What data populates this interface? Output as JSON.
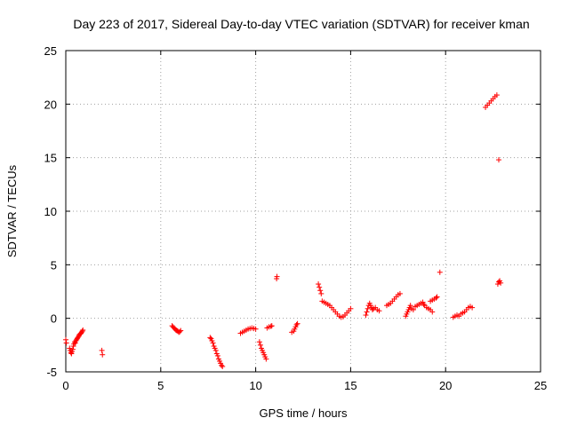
{
  "chart_data": {
    "type": "scatter",
    "title": "Day 223 of 2017, Sidereal Day-to-day VTEC variation (SDTVAR) for receiver kman",
    "xlabel": "GPS time / hours",
    "ylabel": "SDTVAR / TECUs",
    "xlim": [
      0,
      25
    ],
    "ylim": [
      -5,
      25
    ],
    "xticks": [
      "0",
      "5",
      "10",
      "15",
      "20",
      "25"
    ],
    "yticks": [
      "-5",
      "0",
      "5",
      "10",
      "15",
      "20",
      "25"
    ],
    "grid": true,
    "marker": "plus",
    "marker_color": "#ff0000",
    "series": [
      {
        "name": "SDTVAR",
        "points": [
          [
            0.0,
            -2.0
          ],
          [
            0.03,
            -2.3
          ],
          [
            0.2,
            -2.8
          ],
          [
            0.23,
            -3.0
          ],
          [
            0.27,
            -3.2
          ],
          [
            0.3,
            -3.3
          ],
          [
            0.33,
            -3.1
          ],
          [
            0.37,
            -2.9
          ],
          [
            0.4,
            -2.6
          ],
          [
            0.43,
            -2.4
          ],
          [
            0.47,
            -2.2
          ],
          [
            0.5,
            -2.3
          ],
          [
            0.53,
            -2.1
          ],
          [
            0.57,
            -2.0
          ],
          [
            0.6,
            -1.9
          ],
          [
            0.63,
            -1.8
          ],
          [
            0.67,
            -1.7
          ],
          [
            0.7,
            -1.6
          ],
          [
            0.73,
            -1.5
          ],
          [
            0.77,
            -1.45
          ],
          [
            0.8,
            -1.4
          ],
          [
            0.83,
            -1.3
          ],
          [
            0.87,
            -1.2
          ],
          [
            0.9,
            -1.1
          ],
          [
            1.9,
            -3.0
          ],
          [
            1.93,
            -3.4
          ],
          [
            5.6,
            -0.7
          ],
          [
            5.65,
            -0.8
          ],
          [
            5.7,
            -0.9
          ],
          [
            5.75,
            -1.0
          ],
          [
            5.8,
            -1.1
          ],
          [
            5.85,
            -1.15
          ],
          [
            5.9,
            -1.2
          ],
          [
            5.95,
            -1.3
          ],
          [
            6.0,
            -1.25
          ],
          [
            6.05,
            -1.15
          ],
          [
            7.6,
            -1.8
          ],
          [
            7.65,
            -1.9
          ],
          [
            7.7,
            -2.1
          ],
          [
            7.75,
            -2.3
          ],
          [
            7.8,
            -2.6
          ],
          [
            7.85,
            -2.8
          ],
          [
            7.9,
            -3.0
          ],
          [
            7.95,
            -3.3
          ],
          [
            8.0,
            -3.5
          ],
          [
            8.05,
            -3.8
          ],
          [
            8.1,
            -4.0
          ],
          [
            8.15,
            -4.2
          ],
          [
            8.2,
            -4.4
          ],
          [
            8.25,
            -4.5
          ],
          [
            9.2,
            -1.4
          ],
          [
            9.3,
            -1.3
          ],
          [
            9.4,
            -1.2
          ],
          [
            9.5,
            -1.1
          ],
          [
            9.6,
            -1.0
          ],
          [
            9.7,
            -0.95
          ],
          [
            9.8,
            -0.9
          ],
          [
            9.9,
            -0.95
          ],
          [
            10.0,
            -1.0
          ],
          [
            10.2,
            -2.2
          ],
          [
            10.25,
            -2.5
          ],
          [
            10.3,
            -2.8
          ],
          [
            10.35,
            -3.0
          ],
          [
            10.4,
            -3.2
          ],
          [
            10.45,
            -3.4
          ],
          [
            10.5,
            -3.6
          ],
          [
            10.55,
            -3.8
          ],
          [
            10.6,
            -0.9
          ],
          [
            10.7,
            -0.8
          ],
          [
            10.8,
            -0.75
          ],
          [
            10.85,
            -0.7
          ],
          [
            11.1,
            3.7
          ],
          [
            11.12,
            3.9
          ],
          [
            11.9,
            -1.3
          ],
          [
            12.0,
            -1.2
          ],
          [
            12.05,
            -1.0
          ],
          [
            12.1,
            -0.8
          ],
          [
            12.15,
            -0.6
          ],
          [
            12.2,
            -0.5
          ],
          [
            13.3,
            3.2
          ],
          [
            13.35,
            2.9
          ],
          [
            13.4,
            2.6
          ],
          [
            13.45,
            2.3
          ],
          [
            13.5,
            1.6
          ],
          [
            13.6,
            1.5
          ],
          [
            13.7,
            1.4
          ],
          [
            13.8,
            1.3
          ],
          [
            13.9,
            1.2
          ],
          [
            14.0,
            1.0
          ],
          [
            14.1,
            0.8
          ],
          [
            14.2,
            0.6
          ],
          [
            14.3,
            0.4
          ],
          [
            14.4,
            0.2
          ],
          [
            14.5,
            0.1
          ],
          [
            14.6,
            0.15
          ],
          [
            14.7,
            0.3
          ],
          [
            14.8,
            0.5
          ],
          [
            14.9,
            0.7
          ],
          [
            15.0,
            0.9
          ],
          [
            15.8,
            0.3
          ],
          [
            15.85,
            0.6
          ],
          [
            15.9,
            0.9
          ],
          [
            15.95,
            1.2
          ],
          [
            16.0,
            1.4
          ],
          [
            16.05,
            1.2
          ],
          [
            16.1,
            1.0
          ],
          [
            16.15,
            0.8
          ],
          [
            16.2,
            0.9
          ],
          [
            16.3,
            1.0
          ],
          [
            16.4,
            0.8
          ],
          [
            16.5,
            0.7
          ],
          [
            16.9,
            1.2
          ],
          [
            17.0,
            1.3
          ],
          [
            17.1,
            1.4
          ],
          [
            17.2,
            1.6
          ],
          [
            17.3,
            1.8
          ],
          [
            17.4,
            2.0
          ],
          [
            17.5,
            2.2
          ],
          [
            17.6,
            2.3
          ],
          [
            17.9,
            0.2
          ],
          [
            17.95,
            0.4
          ],
          [
            18.0,
            0.6
          ],
          [
            18.05,
            0.8
          ],
          [
            18.1,
            1.0
          ],
          [
            18.15,
            1.2
          ],
          [
            18.2,
            0.9
          ],
          [
            18.3,
            0.8
          ],
          [
            18.4,
            1.1
          ],
          [
            18.5,
            1.2
          ],
          [
            18.6,
            1.3
          ],
          [
            18.7,
            1.4
          ],
          [
            18.8,
            1.5
          ],
          [
            18.85,
            1.3
          ],
          [
            18.9,
            1.2
          ],
          [
            19.0,
            1.0
          ],
          [
            19.1,
            0.9
          ],
          [
            19.2,
            0.8
          ],
          [
            19.3,
            0.6
          ],
          [
            19.2,
            1.6
          ],
          [
            19.3,
            1.7
          ],
          [
            19.4,
            1.8
          ],
          [
            19.5,
            1.9
          ],
          [
            19.55,
            2.0
          ],
          [
            19.7,
            4.3
          ],
          [
            20.4,
            0.1
          ],
          [
            20.5,
            0.2
          ],
          [
            20.6,
            0.3
          ],
          [
            20.7,
            0.2
          ],
          [
            20.8,
            0.4
          ],
          [
            20.9,
            0.5
          ],
          [
            21.0,
            0.6
          ],
          [
            21.1,
            0.8
          ],
          [
            21.2,
            1.0
          ],
          [
            21.3,
            1.1
          ],
          [
            21.4,
            1.0
          ],
          [
            22.1,
            19.7
          ],
          [
            22.2,
            19.9
          ],
          [
            22.3,
            20.1
          ],
          [
            22.4,
            20.3
          ],
          [
            22.5,
            20.5
          ],
          [
            22.6,
            20.7
          ],
          [
            22.7,
            20.85
          ],
          [
            22.8,
            14.8
          ],
          [
            22.75,
            3.2
          ],
          [
            22.8,
            3.4
          ],
          [
            22.85,
            3.5
          ],
          [
            22.9,
            3.3
          ]
        ]
      }
    ]
  }
}
